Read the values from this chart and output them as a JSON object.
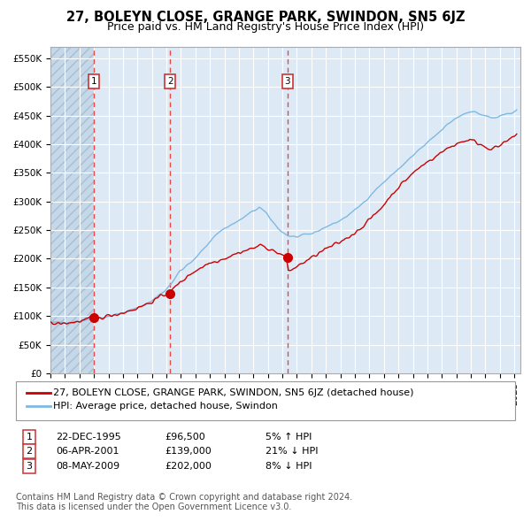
{
  "title": "27, BOLEYN CLOSE, GRANGE PARK, SWINDON, SN5 6JZ",
  "subtitle": "Price paid vs. HM Land Registry's House Price Index (HPI)",
  "ylabel_ticks": [
    "£0",
    "£50K",
    "£100K",
    "£150K",
    "£200K",
    "£250K",
    "£300K",
    "£350K",
    "£400K",
    "£450K",
    "£500K",
    "£550K"
  ],
  "ytick_values": [
    0,
    50000,
    100000,
    150000,
    200000,
    250000,
    300000,
    350000,
    400000,
    450000,
    500000,
    550000
  ],
  "ylim": [
    0,
    570000
  ],
  "sale1_date": "22-DEC-1995",
  "sale1_price": 96500,
  "sale1_label": "5% ↑ HPI",
  "sale2_date": "06-APR-2001",
  "sale2_price": 139000,
  "sale2_label": "21% ↓ HPI",
  "sale3_date": "08-MAY-2009",
  "sale3_price": 202000,
  "sale3_label": "8% ↓ HPI",
  "hpi_line_color": "#7fb9e0",
  "price_line_color": "#cc0000",
  "sale_marker_color": "#cc0000",
  "vline_color": "#ee4444",
  "bg_color": "#ddeaf6",
  "hatch_bg_color": "#c5d8ea",
  "grid_color": "#ffffff",
  "legend_label1": "27, BOLEYN CLOSE, GRANGE PARK, SWINDON, SN5 6JZ (detached house)",
  "legend_label2": "HPI: Average price, detached house, Swindon",
  "footer1": "Contains HM Land Registry data © Crown copyright and database right 2024.",
  "footer2": "This data is licensed under the Open Government Licence v3.0.",
  "title_fontsize": 10.5,
  "subtitle_fontsize": 9,
  "axis_fontsize": 7.5,
  "legend_fontsize": 8,
  "table_fontsize": 8,
  "footer_fontsize": 7
}
